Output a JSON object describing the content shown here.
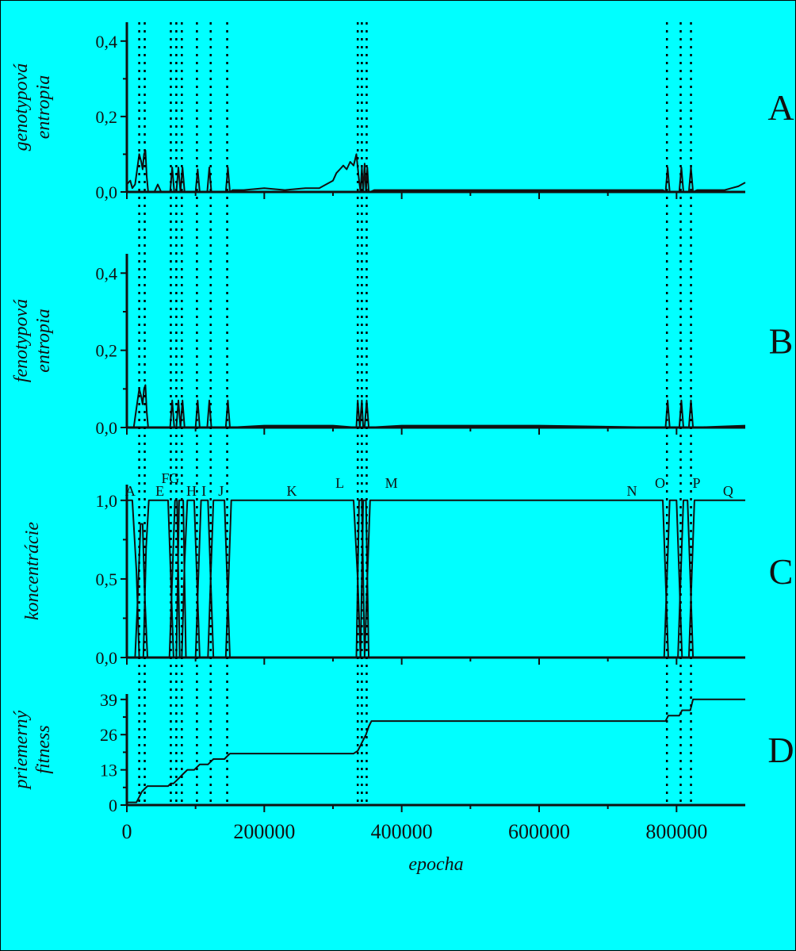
{
  "colors": {
    "background": "#00ffff",
    "border": "#000000",
    "line": "#111111",
    "guide": "#000000"
  },
  "chart_data": [
    {
      "id": "A",
      "type": "line",
      "panel_label": "A",
      "ylabel": [
        "genotypová",
        "entropia"
      ],
      "xlim": [
        0,
        900000
      ],
      "ylim": [
        0,
        0.45
      ],
      "yticks": [
        0.0,
        0.2,
        0.4
      ],
      "ytick_labels": [
        "0,0",
        "0,2",
        "0,4"
      ],
      "series": [
        {
          "x": [
            0,
            5000,
            8000,
            12000,
            15000,
            18000,
            21000,
            23000,
            25000,
            27000,
            29000,
            31000,
            35000,
            40000,
            45000,
            50000,
            55000,
            60000,
            63000,
            66000,
            69000,
            72000,
            75000,
            78000,
            81000,
            84000,
            87000,
            90000,
            95000,
            100000,
            103000,
            106000,
            109000,
            112000,
            117000,
            120000,
            123000,
            126000,
            130000,
            140000,
            144000,
            147000,
            150000,
            154000,
            170000,
            200000,
            230000,
            260000,
            280000,
            290000,
            300000,
            305000,
            310000,
            315000,
            320000,
            325000,
            330000,
            334000,
            338000,
            340000,
            342000,
            344000,
            346000,
            348000,
            350000,
            352000,
            354000,
            360000,
            400000,
            450000,
            500000,
            550000,
            600000,
            650000,
            700000,
            750000,
            780000,
            784000,
            787000,
            790000,
            794000,
            800000,
            804000,
            807000,
            810000,
            815000,
            818000,
            821000,
            824000,
            830000,
            850000,
            870000,
            880000,
            890000,
            900000
          ],
          "y": [
            0.02,
            0.03,
            0.01,
            0.02,
            0.06,
            0.1,
            0.08,
            0.06,
            0.1,
            0.11,
            0.04,
            0.0,
            0.0,
            0.0,
            0.02,
            0.0,
            0.0,
            0.0,
            0.0,
            0.065,
            0.0,
            0.0,
            0.065,
            0.0,
            0.065,
            0.0,
            0.0,
            0.0,
            0.0,
            0.0,
            0.06,
            0.0,
            0.0,
            0.0,
            0.0,
            0.065,
            0.0,
            0.0,
            0.0,
            0.0,
            0.0,
            0.065,
            0.0,
            0.005,
            0.005,
            0.01,
            0.005,
            0.01,
            0.01,
            0.02,
            0.03,
            0.05,
            0.06,
            0.07,
            0.06,
            0.08,
            0.07,
            0.1,
            0.03,
            0.0,
            0.065,
            0.0,
            0.075,
            0.0,
            0.065,
            0.0,
            0.0,
            0.005,
            0.005,
            0.005,
            0.005,
            0.005,
            0.005,
            0.005,
            0.005,
            0.005,
            0.005,
            0.0,
            0.065,
            0.0,
            0.0,
            0.0,
            0.0,
            0.065,
            0.0,
            0.0,
            0.0,
            0.065,
            0.0,
            0.005,
            0.005,
            0.005,
            0.01,
            0.015,
            0.025
          ]
        }
      ]
    },
    {
      "id": "B",
      "type": "line",
      "panel_label": "B",
      "ylabel": [
        "fenotypová",
        "entropia"
      ],
      "xlim": [
        0,
        900000
      ],
      "ylim": [
        0,
        0.45
      ],
      "yticks": [
        0.0,
        0.2,
        0.4
      ],
      "ytick_labels": [
        "0,0",
        "0,2",
        "0,4"
      ],
      "series": [
        {
          "x": [
            0,
            10000,
            14000,
            18000,
            21000,
            23000,
            25000,
            27000,
            29000,
            31000,
            40000,
            63000,
            66000,
            69000,
            72000,
            75000,
            78000,
            81000,
            84000,
            100000,
            103000,
            106000,
            117000,
            120000,
            123000,
            140000,
            144000,
            147000,
            150000,
            200000,
            300000,
            334000,
            336000,
            339000,
            342000,
            344000,
            346000,
            349000,
            352000,
            400000,
            600000,
            780000,
            784000,
            787000,
            790000,
            800000,
            804000,
            807000,
            810000,
            815000,
            818000,
            821000,
            824000,
            900000
          ],
          "y": [
            0.0,
            0.0,
            0.05,
            0.1,
            0.08,
            0.06,
            0.1,
            0.11,
            0.04,
            0.0,
            0.0,
            0.0,
            0.07,
            0.0,
            0.0,
            0.07,
            0.0,
            0.07,
            0.0,
            0.0,
            0.07,
            0.0,
            0.0,
            0.07,
            0.0,
            0.0,
            0.0,
            0.07,
            0.0,
            0.005,
            0.005,
            0.0,
            0.07,
            0.0,
            0.07,
            0.0,
            0.0,
            0.07,
            0.0,
            0.005,
            0.005,
            0.0,
            0.0,
            0.07,
            0.0,
            0.0,
            0.0,
            0.07,
            0.0,
            0.0,
            0.0,
            0.07,
            0.0,
            0.005
          ]
        }
      ]
    },
    {
      "id": "C",
      "type": "line",
      "panel_label": "C",
      "ylabel": [
        "koncentrácie"
      ],
      "xlim": [
        0,
        900000
      ],
      "ylim": [
        0,
        1.1
      ],
      "yticks": [
        0.0,
        0.5,
        1.0
      ],
      "ytick_labels": [
        "0,0",
        "0,5",
        "1,0"
      ],
      "segment_labels": [
        {
          "text": "A",
          "x": 5000,
          "y": 1.0
        },
        {
          "text": "E",
          "x": 48000,
          "y": 1.0
        },
        {
          "text": "F",
          "x": 56000,
          "y": 1.08
        },
        {
          "text": "G",
          "x": 69000,
          "y": 1.08
        },
        {
          "text": "H",
          "x": 94000,
          "y": 1.0
        },
        {
          "text": "I",
          "x": 112000,
          "y": 1.0
        },
        {
          "text": "J",
          "x": 137000,
          "y": 1.0
        },
        {
          "text": "K",
          "x": 240000,
          "y": 1.0
        },
        {
          "text": "L",
          "x": 310000,
          "y": 1.05
        },
        {
          "text": "M",
          "x": 385000,
          "y": 1.05
        },
        {
          "text": "N",
          "x": 735000,
          "y": 1.0
        },
        {
          "text": "O",
          "x": 776000,
          "y": 1.05
        },
        {
          "text": "P",
          "x": 829000,
          "y": 1.05
        },
        {
          "text": "Q",
          "x": 875000,
          "y": 1.0
        }
      ],
      "series": [
        {
          "x": [
            0,
            8000,
            14000,
            18000,
            22000
          ],
          "y": [
            1.0,
            1.0,
            0.55,
            0.0,
            0.0
          ]
        },
        {
          "x": [
            12000,
            16000,
            20000,
            23000,
            26000,
            30000
          ],
          "y": [
            0.0,
            0.4,
            0.85,
            0.85,
            0.4,
            0.0
          ]
        },
        {
          "x": [
            24000,
            28000,
            32000,
            40000,
            60000,
            64000,
            68000
          ],
          "y": [
            0.0,
            0.7,
            1.0,
            1.0,
            1.0,
            0.5,
            0.0
          ]
        },
        {
          "x": [
            62000,
            66000,
            70000,
            73000,
            77000
          ],
          "y": [
            0.0,
            0.5,
            1.0,
            1.0,
            0.0
          ]
        },
        {
          "x": [
            72000,
            76000,
            79000,
            82000,
            86000
          ],
          "y": [
            0.0,
            1.0,
            1.0,
            1.0,
            0.0
          ]
        },
        {
          "x": [
            80000,
            84000,
            88000,
            98000,
            102000,
            106000
          ],
          "y": [
            0.0,
            0.6,
            1.0,
            1.0,
            0.5,
            0.0
          ]
        },
        {
          "x": [
            100000,
            104000,
            108000,
            118000,
            122000,
            126000
          ],
          "y": [
            0.0,
            0.5,
            1.0,
            1.0,
            0.5,
            0.0
          ]
        },
        {
          "x": [
            118000,
            122000,
            126000,
            142000,
            146000,
            150000
          ],
          "y": [
            0.0,
            0.5,
            1.0,
            1.0,
            0.5,
            0.0
          ]
        },
        {
          "x": [
            144000,
            148000,
            152000,
            200000,
            250000,
            300000,
            330000,
            336000,
            340000
          ],
          "y": [
            0.0,
            0.5,
            1.0,
            1.0,
            1.0,
            1.0,
            1.0,
            0.5,
            0.0
          ]
        },
        {
          "x": [
            334000,
            338000,
            342000,
            346000
          ],
          "y": [
            0.0,
            1.0,
            1.0,
            0.0
          ]
        },
        {
          "x": [
            340000,
            344000,
            348000,
            352000
          ],
          "y": [
            0.0,
            1.0,
            1.0,
            0.0
          ]
        },
        {
          "x": [
            346000,
            350000,
            354000,
            400000,
            500000,
            600000,
            700000,
            780000,
            784000,
            788000
          ],
          "y": [
            0.0,
            0.5,
            1.0,
            1.0,
            1.0,
            1.0,
            1.0,
            1.0,
            0.5,
            0.0
          ]
        },
        {
          "x": [
            782000,
            786000,
            790000,
            800000,
            804000,
            808000
          ],
          "y": [
            0.0,
            0.5,
            1.0,
            1.0,
            0.5,
            0.0
          ]
        },
        {
          "x": [
            802000,
            806000,
            810000,
            816000,
            820000,
            824000
          ],
          "y": [
            0.0,
            0.5,
            1.0,
            1.0,
            0.5,
            0.0
          ]
        },
        {
          "x": [
            818000,
            822000,
            826000,
            850000,
            900000
          ],
          "y": [
            0.0,
            0.5,
            1.0,
            1.0,
            1.0
          ]
        }
      ]
    },
    {
      "id": "D",
      "type": "line",
      "panel_label": "D",
      "ylabel": [
        "priemerný",
        "fitness"
      ],
      "xlim": [
        0,
        900000
      ],
      "ylim": [
        0,
        41
      ],
      "yticks": [
        0,
        13,
        26,
        39
      ],
      "ytick_labels": [
        "0",
        "13",
        "26",
        "39"
      ],
      "series": [
        {
          "x": [
            0,
            14000,
            18000,
            22000,
            26000,
            30000,
            60000,
            64000,
            68000,
            72000,
            76000,
            80000,
            84000,
            88000,
            98000,
            102000,
            106000,
            118000,
            122000,
            126000,
            142000,
            146000,
            150000,
            200000,
            250000,
            330000,
            336000,
            340000,
            344000,
            348000,
            352000,
            356000,
            400000,
            500000,
            600000,
            700000,
            784000,
            788000,
            804000,
            808000,
            820000,
            824000,
            850000,
            900000
          ],
          "y": [
            1,
            1,
            3,
            5,
            6,
            7,
            7,
            8,
            8,
            9,
            10,
            11,
            12,
            13,
            13,
            14,
            15,
            15,
            16,
            17,
            17,
            18,
            19,
            19,
            19,
            19,
            20,
            22,
            24,
            26,
            29,
            31,
            31,
            31,
            31,
            31,
            31,
            33,
            33,
            35,
            35,
            39,
            39,
            39
          ]
        }
      ]
    }
  ],
  "xaxis": {
    "xlabel": "epocha",
    "xticks": [
      0,
      200000,
      400000,
      600000,
      800000
    ],
    "xtick_labels": [
      "0",
      "200000",
      "400000",
      "600000",
      "800000"
    ]
  },
  "guide_lines_x": [
    18000,
    26000,
    64000,
    72000,
    80000,
    102000,
    122000,
    146000,
    336000,
    342000,
    349000,
    786000,
    806000,
    821000
  ]
}
